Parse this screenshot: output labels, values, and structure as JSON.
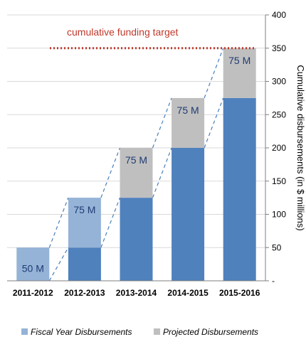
{
  "chart_data": {
    "type": "bar",
    "stacked": true,
    "categories": [
      "2011-2012",
      "2012-2013",
      "2013-2014",
      "2014-2015",
      "2015-2016"
    ],
    "series": [
      {
        "name": "Fiscal Year Disbursements",
        "values": [
          0,
          50,
          125,
          200,
          275
        ],
        "color": "#4f81bd"
      },
      {
        "name": "Projected Disbursements",
        "values": [
          50,
          75,
          75,
          75,
          75
        ],
        "colors": [
          "#95b3d7",
          "#95b3d7",
          "#bfbfbf",
          "#bfbfbf",
          "#bfbfbf"
        ],
        "data_labels": [
          "50 M",
          "75 M",
          "75 M",
          "75 M",
          "75 M"
        ]
      }
    ],
    "legend": [
      {
        "label": "Fiscal Year Disbursements",
        "color": "#95b3d7"
      },
      {
        "label": "Projected Disbursements",
        "color": "#bfbfbf"
      }
    ],
    "legend_position": "bottom",
    "ylabel": "Cumulative disbursements (in $ millions)",
    "y_axis_side": "right",
    "ylim": [
      0,
      400
    ],
    "yticks": [
      0,
      50,
      100,
      150,
      200,
      250,
      300,
      350,
      400
    ],
    "ytick_labels": [
      "-",
      "50",
      "100",
      "150",
      "200",
      "250",
      "300",
      "350",
      "400"
    ],
    "grid": true,
    "target_line": {
      "value": 350,
      "label": "cumulative funding target",
      "color": "#c0392b"
    },
    "connectors": "dashed lines linking each bar's top and base to the next bar's base and top"
  }
}
